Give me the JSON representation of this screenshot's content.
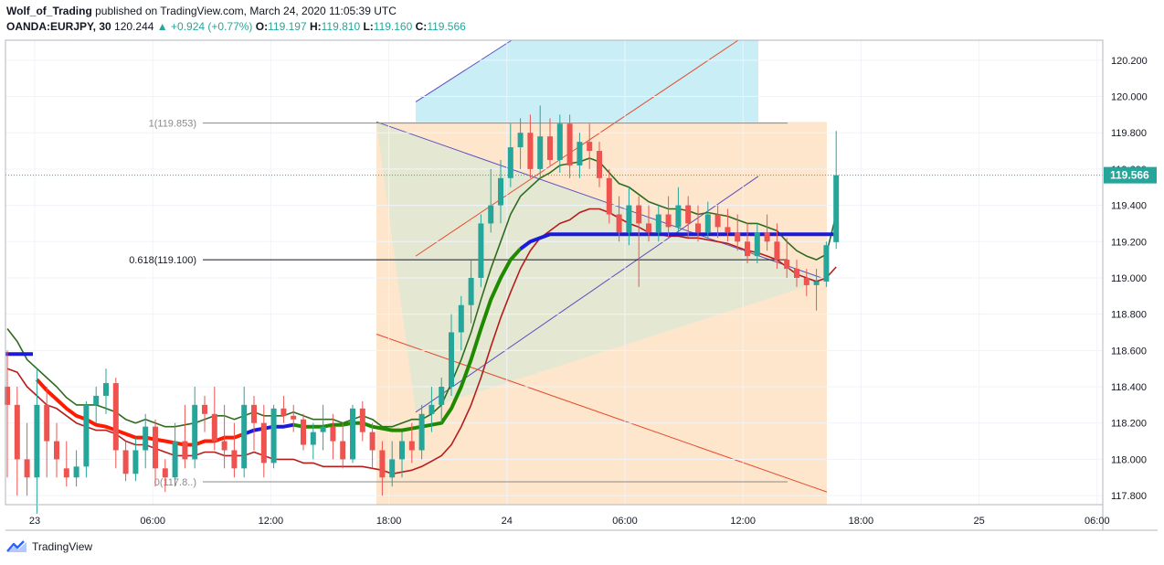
{
  "header": {
    "author": "Wolf_of_Trading",
    "published_text": "published on TradingView.com, March 24, 2020 11:05:39 UTC",
    "symbol": "OANDA:EURJPY, 30",
    "last": "120.244",
    "change_arrow": "▲",
    "change": "+0.924 (+0.77%)",
    "o_label": "O:",
    "o_value": "119.197",
    "h_label": "H:",
    "h_value": "119.810",
    "l_label": "L:",
    "l_value": "119.160",
    "c_label": "C:",
    "c_value": "119.566"
  },
  "footer": {
    "brand": "TradingView",
    "logo_icon": "tradingview-logo-icon"
  },
  "colors": {
    "up": "#26a69a",
    "down": "#ef5350",
    "ema_green": "#2e6b1e",
    "ema_red": "#b71c1c",
    "channel_fill": "#c9eef5",
    "zone_fill": "#fde6cc",
    "triangle_fill": "#dfe8d2",
    "price_badge": "#26a69a",
    "blue_line": "#1a1adb"
  },
  "chart_data": {
    "type": "candlestick",
    "symbol": "OANDA:EURJPY",
    "timeframe": "30",
    "y_range": [
      117.75,
      120.31
    ],
    "y_ticks": [
      "120.200",
      "120.000",
      "119.800",
      "119.600",
      "119.400",
      "119.200",
      "119.000",
      "118.800",
      "118.600",
      "118.400",
      "118.200",
      "118.000",
      "117.800"
    ],
    "x_range": [
      -1.1,
      37
    ],
    "x_ticks": [
      {
        "label": "23",
        "i": 0
      },
      {
        "label": "06:00",
        "i": 4
      },
      {
        "label": "12:00",
        "i": 8
      },
      {
        "label": "18:00",
        "i": 12
      },
      {
        "label": "24",
        "i": 16
      },
      {
        "label": "06:00",
        "i": 20
      },
      {
        "label": "12:00",
        "i": 24
      },
      {
        "label": "18:00",
        "i": 28
      },
      {
        "label": "25",
        "i": 32
      },
      {
        "label": "06:00",
        "i": 36
      }
    ],
    "last_price": "119.566",
    "fib_levels": [
      {
        "label": "1(119.853)",
        "value": 119.853,
        "i0": 6.2,
        "i1": 25.6
      },
      {
        "label": "0.618(119.100)",
        "value": 119.1,
        "i0": 6.2,
        "i1": 25.6
      },
      {
        "label": "0(117.8..)",
        "value": 117.876,
        "i0": 6.2,
        "i1": 25.6
      }
    ],
    "candles": [
      [
        118.4,
        118.6,
        117.9,
        118.3
      ],
      [
        118.3,
        118.4,
        117.8,
        118.0
      ],
      [
        118.0,
        118.2,
        117.8,
        117.9
      ],
      [
        117.9,
        118.5,
        117.7,
        118.3
      ],
      [
        118.3,
        118.4,
        117.9,
        118.1
      ],
      [
        118.1,
        118.2,
        117.9,
        118.0
      ],
      [
        117.95,
        118.1,
        117.85,
        117.9
      ],
      [
        117.9,
        118.05,
        117.85,
        117.96
      ],
      [
        117.96,
        118.32,
        117.9,
        118.3
      ],
      [
        118.3,
        118.4,
        118.2,
        118.35
      ],
      [
        118.35,
        118.5,
        118.25,
        118.42
      ],
      [
        118.42,
        118.45,
        117.95,
        118.05
      ],
      [
        118.05,
        118.1,
        117.88,
        117.92
      ],
      [
        117.92,
        118.12,
        117.88,
        118.05
      ],
      [
        118.05,
        118.25,
        117.95,
        118.18
      ],
      [
        118.18,
        118.22,
        117.85,
        117.95
      ],
      [
        117.95,
        118.0,
        117.82,
        117.9
      ],
      [
        117.9,
        118.2,
        117.85,
        118.1
      ],
      [
        118.1,
        118.3,
        117.95,
        118.0
      ],
      [
        118.0,
        118.4,
        117.95,
        118.3
      ],
      [
        118.3,
        118.35,
        118.15,
        118.25
      ],
      [
        118.25,
        118.4,
        118.05,
        118.1
      ],
      [
        118.1,
        118.3,
        117.95,
        118.05
      ],
      [
        118.05,
        118.2,
        117.9,
        117.95
      ],
      [
        117.95,
        118.4,
        117.9,
        118.3
      ],
      [
        118.3,
        118.35,
        118.05,
        118.2
      ],
      [
        118.2,
        118.3,
        117.9,
        117.98
      ],
      [
        117.98,
        118.3,
        117.95,
        118.28
      ],
      [
        118.28,
        118.35,
        118.2,
        118.24
      ],
      [
        118.24,
        118.3,
        118.15,
        118.22
      ],
      [
        118.22,
        118.25,
        118.05,
        118.08
      ],
      [
        118.08,
        118.2,
        118.0,
        118.15
      ],
      [
        118.15,
        118.3,
        118.05,
        118.18
      ],
      [
        118.18,
        118.25,
        118.0,
        118.1
      ],
      [
        118.1,
        118.2,
        117.95,
        118.0
      ],
      [
        118.0,
        118.3,
        117.98,
        118.28
      ],
      [
        118.28,
        118.32,
        118.1,
        118.15
      ],
      [
        118.15,
        118.2,
        117.95,
        118.05
      ],
      [
        118.05,
        118.1,
        117.8,
        117.9
      ],
      [
        117.9,
        118.1,
        117.85,
        118.0
      ],
      [
        118.0,
        118.15,
        117.9,
        118.1
      ],
      [
        118.1,
        118.2,
        117.98,
        118.05
      ],
      [
        118.05,
        118.3,
        118.0,
        118.25
      ],
      [
        118.25,
        118.4,
        118.15,
        118.3
      ],
      [
        118.3,
        118.45,
        118.2,
        118.4
      ],
      [
        118.4,
        118.8,
        118.35,
        118.7
      ],
      [
        118.7,
        118.9,
        118.6,
        118.85
      ],
      [
        118.85,
        119.1,
        118.75,
        119.0
      ],
      [
        119.0,
        119.35,
        118.95,
        119.3
      ],
      [
        119.3,
        119.6,
        119.25,
        119.4
      ],
      [
        119.4,
        119.65,
        119.3,
        119.55
      ],
      [
        119.55,
        119.85,
        119.5,
        119.72
      ],
      [
        119.72,
        119.88,
        119.6,
        119.8
      ],
      [
        119.8,
        119.9,
        119.55,
        119.6
      ],
      [
        119.6,
        119.95,
        119.55,
        119.78
      ],
      [
        119.78,
        119.88,
        119.62,
        119.65
      ],
      [
        119.65,
        119.9,
        119.58,
        119.85
      ],
      [
        119.85,
        119.9,
        119.55,
        119.62
      ],
      [
        119.62,
        119.8,
        119.55,
        119.75
      ],
      [
        119.75,
        119.85,
        119.6,
        119.7
      ],
      [
        119.7,
        119.75,
        119.5,
        119.55
      ],
      [
        119.55,
        119.6,
        119.3,
        119.35
      ],
      [
        119.35,
        119.45,
        119.2,
        119.25
      ],
      [
        119.25,
        119.5,
        119.18,
        119.4
      ],
      [
        119.4,
        119.45,
        118.95,
        119.3
      ],
      [
        119.3,
        119.4,
        119.2,
        119.25
      ],
      [
        119.25,
        119.4,
        119.2,
        119.35
      ],
      [
        119.35,
        119.45,
        119.22,
        119.28
      ],
      [
        119.28,
        119.5,
        119.25,
        119.4
      ],
      [
        119.4,
        119.45,
        119.22,
        119.3
      ],
      [
        119.3,
        119.4,
        119.2,
        119.25
      ],
      [
        119.25,
        119.42,
        119.22,
        119.35
      ],
      [
        119.35,
        119.4,
        119.22,
        119.28
      ],
      [
        119.28,
        119.38,
        119.2,
        119.25
      ],
      [
        119.25,
        119.35,
        119.15,
        119.2
      ],
      [
        119.2,
        119.3,
        119.08,
        119.12
      ],
      [
        119.12,
        119.3,
        119.08,
        119.25
      ],
      [
        119.25,
        119.35,
        119.15,
        119.2
      ],
      [
        119.2,
        119.3,
        119.05,
        119.1
      ],
      [
        119.1,
        119.22,
        119.0,
        119.05
      ],
      [
        119.05,
        119.1,
        118.95,
        119.0
      ],
      [
        119.0,
        119.05,
        118.9,
        118.96
      ],
      [
        118.96,
        119.05,
        118.82,
        118.98
      ],
      [
        118.98,
        119.2,
        118.95,
        119.18
      ],
      [
        119.197,
        119.81,
        119.16,
        119.566
      ]
    ],
    "ema_fast": [
      118.72,
      118.65,
      118.55,
      118.5,
      118.45,
      118.4,
      118.34,
      118.3,
      118.3,
      118.3,
      118.28,
      118.26,
      118.22,
      118.2,
      118.22,
      118.2,
      118.18,
      118.18,
      118.19,
      118.2,
      118.22,
      118.24,
      118.24,
      118.22,
      118.24,
      118.26,
      118.24,
      118.24,
      118.24,
      118.26,
      118.24,
      118.22,
      118.22,
      118.22,
      118.2,
      118.22,
      118.24,
      118.22,
      118.18,
      118.18,
      118.2,
      118.22,
      118.22,
      118.25,
      118.3,
      118.42,
      118.55,
      118.7,
      118.88,
      119.05,
      119.2,
      119.35,
      119.45,
      119.5,
      119.55,
      119.58,
      119.62,
      119.63,
      119.64,
      119.66,
      119.64,
      119.58,
      119.52,
      119.5,
      119.46,
      119.42,
      119.4,
      119.38,
      119.38,
      119.37,
      119.35,
      119.36,
      119.35,
      119.34,
      119.32,
      119.3,
      119.3,
      119.28,
      119.26,
      119.2,
      119.15,
      119.12,
      119.1,
      119.13,
      119.35
    ],
    "ema_slow": [
      118.5,
      118.48,
      118.4,
      118.35,
      118.3,
      118.28,
      118.24,
      118.2,
      118.18,
      118.16,
      118.16,
      118.14,
      118.1,
      118.08,
      118.08,
      118.06,
      118.04,
      118.02,
      118.02,
      118.02,
      118.04,
      118.04,
      118.02,
      118.02,
      118.02,
      118.04,
      118.02,
      118.0,
      118.0,
      118.0,
      117.98,
      117.98,
      117.96,
      117.96,
      117.96,
      117.96,
      117.96,
      117.95,
      117.94,
      117.92,
      117.93,
      117.94,
      117.96,
      117.99,
      118.02,
      118.08,
      118.18,
      118.3,
      118.45,
      118.62,
      118.78,
      118.92,
      119.05,
      119.15,
      119.22,
      119.26,
      119.3,
      119.32,
      119.36,
      119.38,
      119.38,
      119.36,
      119.33,
      119.3,
      119.28,
      119.25,
      119.24,
      119.23,
      119.23,
      119.22,
      119.22,
      119.21,
      119.2,
      119.19,
      119.17,
      119.15,
      119.14,
      119.12,
      119.1,
      119.06,
      119.02,
      119.0,
      118.98,
      119.0,
      119.06
    ],
    "ema_thick": [
      118.58,
      118.56,
      118.5,
      118.44,
      118.38,
      118.33,
      118.28,
      118.24,
      118.22,
      118.19,
      118.18,
      118.16,
      118.14,
      118.12,
      118.12,
      118.11,
      118.1,
      118.09,
      118.08,
      118.08,
      118.1,
      118.1,
      118.12,
      118.12,
      118.14,
      118.16,
      118.17,
      118.18,
      118.18,
      118.19,
      118.18,
      118.18,
      118.18,
      118.19,
      118.19,
      118.2,
      118.2,
      118.18,
      118.17,
      118.16,
      118.16,
      118.17,
      118.18,
      118.19,
      118.2,
      118.28,
      118.4,
      118.55,
      118.72,
      118.88,
      119.0,
      119.1,
      119.16,
      119.2,
      119.22,
      119.24,
      119.24,
      119.24,
      119.24,
      119.24,
      119.24,
      119.24,
      119.24,
      119.24,
      119.24,
      119.24,
      119.24,
      119.24,
      119.24,
      119.24,
      119.24,
      119.24,
      119.24,
      119.24,
      119.24,
      119.24,
      119.24,
      119.24,
      119.24,
      119.24,
      119.24,
      119.24,
      119.24,
      119.24,
      119.24
    ]
  }
}
